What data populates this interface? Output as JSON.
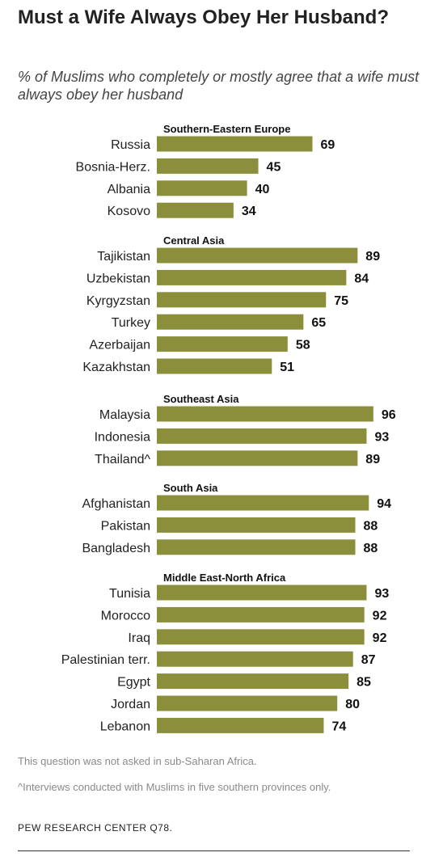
{
  "title": "Must a Wife Always Obey Her Husband?",
  "subtitle": "% of Muslims who completely or mostly agree that a wife must always obey her husband",
  "colors": {
    "bar": "#8b8f3c"
  },
  "chart_data": {
    "type": "bar",
    "orientation": "horizontal",
    "groups": [
      {
        "name": "Southern-Eastern  Europe",
        "categories": [
          "Russia",
          "Bosnia-Herz.",
          "Albania",
          "Kosovo"
        ],
        "values": [
          69,
          45,
          40,
          34
        ]
      },
      {
        "name": "Central Asia",
        "categories": [
          "Tajikistan",
          "Uzbekistan",
          "Kyrgyzstan",
          "Turkey",
          "Azerbaijan",
          "Kazakhstan"
        ],
        "values": [
          89,
          84,
          75,
          65,
          58,
          51
        ]
      },
      {
        "name": "Southeast  Asia",
        "categories": [
          "Malaysia",
          "Indonesia",
          "Thailand^"
        ],
        "values": [
          96,
          93,
          89
        ]
      },
      {
        "name": "South Asia",
        "categories": [
          "Afghanistan",
          "Pakistan",
          "Bangladesh"
        ],
        "values": [
          94,
          88,
          88
        ]
      },
      {
        "name": "Middle East-North  Africa",
        "categories": [
          "Tunisia",
          "Morocco",
          "Iraq",
          "Palestinian terr.",
          "Egypt",
          "Jordan",
          "Lebanon"
        ],
        "values": [
          93,
          92,
          92,
          87,
          85,
          80,
          74
        ]
      }
    ],
    "xlim": [
      0,
      100
    ],
    "grid": false,
    "legend": "none",
    "data_labels": true
  },
  "notes": {
    "not_asked": "This question was not asked in sub-Saharan Africa.",
    "thailand": "^Interviews conducted with Muslims in five southern provinces only."
  },
  "source": "PEW RESEARCH CENTER Q78."
}
